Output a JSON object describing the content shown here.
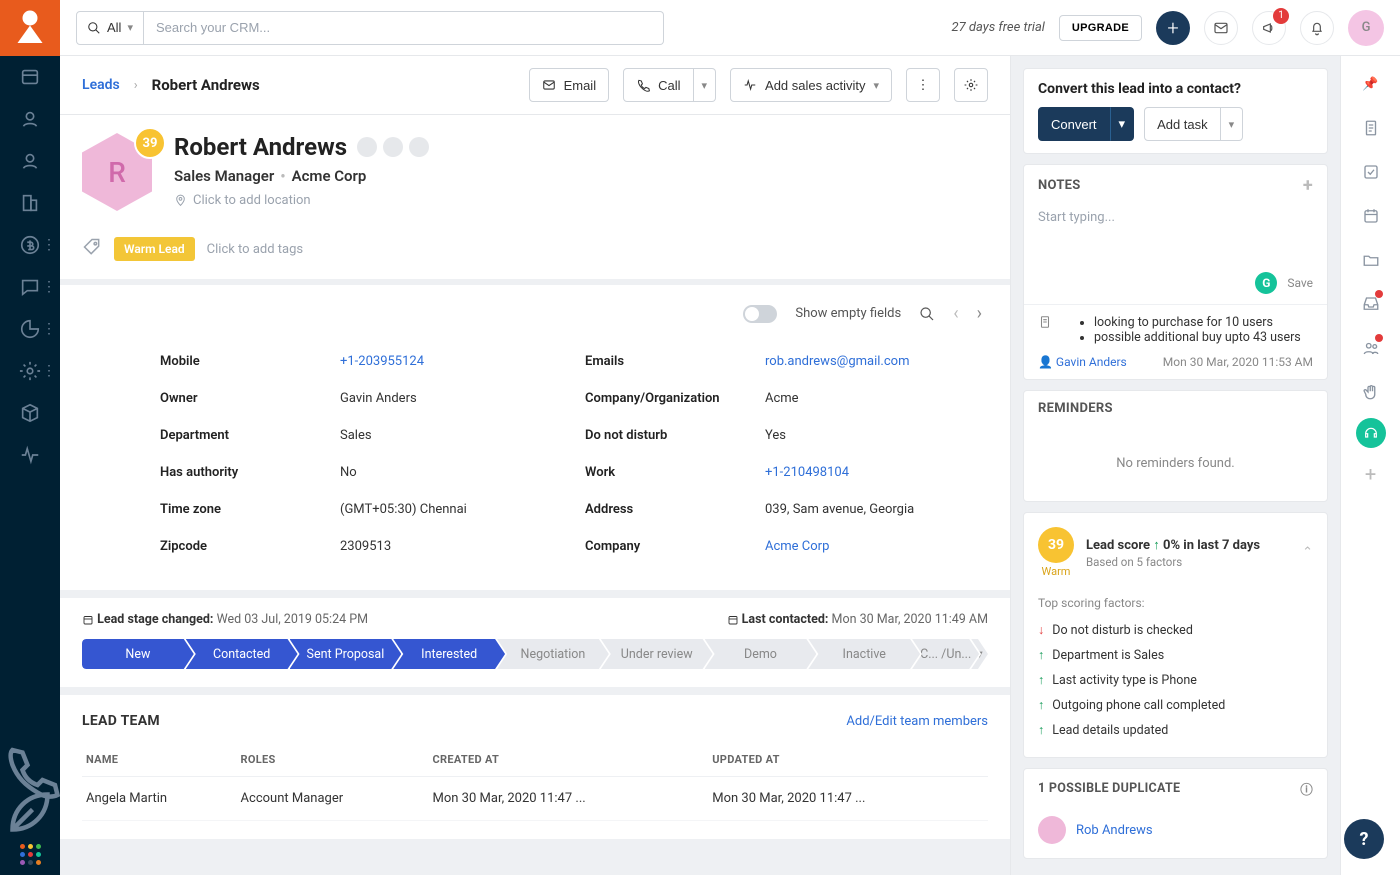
{
  "colors": {
    "brand": "#e85b1d",
    "navbg": "#002033",
    "primary": "#1b3a5b",
    "link": "#2f6fd8",
    "warm": "#f8c332",
    "stageActive": "#3556d1",
    "stageInactive": "#e8eaee",
    "success": "#1a9e5c",
    "danger": "#e33b3b"
  },
  "topbar": {
    "all": "All",
    "searchPlaceholder": "Search your CRM...",
    "trial": "27 days free trial",
    "upgrade": "UPGRADE",
    "badgeCount": "1",
    "avatarInitial": "G"
  },
  "breadcrumb": {
    "root": "Leads",
    "current": "Robert Andrews"
  },
  "headerButtons": {
    "email": "Email",
    "call": "Call",
    "addActivity": "Add sales activity"
  },
  "lead": {
    "initial": "R",
    "score": "39",
    "name": "Robert Andrews",
    "jobTitle": "Sales Manager",
    "company": "Acme Corp",
    "locationPlaceholder": "Click to add location",
    "tag": "Warm Lead",
    "addTags": "Click to add tags"
  },
  "details": {
    "showEmpty": "Show empty fields",
    "left": [
      {
        "label": "Mobile",
        "value": "+1-203955124",
        "link": true
      },
      {
        "label": "Owner",
        "value": "Gavin Anders",
        "link": false
      },
      {
        "label": "Department",
        "value": "Sales",
        "link": false
      },
      {
        "label": "Has authority",
        "value": "No",
        "link": false
      },
      {
        "label": "Time zone",
        "value": "(GMT+05:30) Chennai",
        "link": false
      },
      {
        "label": "Zipcode",
        "value": "2309513",
        "link": false
      }
    ],
    "right": [
      {
        "label": "Emails",
        "value": "rob.andrews@gmail.com",
        "link": true
      },
      {
        "label": "Company/Organization",
        "value": "Acme",
        "link": false
      },
      {
        "label": "Do not disturb",
        "value": "Yes",
        "link": false
      },
      {
        "label": "Work",
        "value": "+1-210498104",
        "link": true
      },
      {
        "label": "Address",
        "value": "039, Sam avenue, Georgia",
        "link": false
      },
      {
        "label": "Company",
        "value": "Acme Corp",
        "link": true
      }
    ]
  },
  "stage": {
    "changedLabel": "Lead stage changed:",
    "changedDate": "Wed 03 Jul, 2019 05:24 PM",
    "lastContactLabel": "Last contacted:",
    "lastContactDate": "Mon 30 Mar, 2020 11:49 AM",
    "stages": [
      {
        "name": "New",
        "active": true
      },
      {
        "name": "Contacted",
        "active": true
      },
      {
        "name": "Sent Proposal",
        "active": true
      },
      {
        "name": "Interested",
        "active": true
      },
      {
        "name": "Negotiation",
        "active": false
      },
      {
        "name": "Under review",
        "active": false
      },
      {
        "name": "Demo",
        "active": false
      },
      {
        "name": "Inactive",
        "active": false
      },
      {
        "name": "C... /Un...",
        "active": false
      }
    ]
  },
  "team": {
    "title": "LEAD TEAM",
    "addLink": "Add/Edit team members",
    "cols": [
      "NAME",
      "ROLES",
      "CREATED AT",
      "UPDATED AT"
    ],
    "rows": [
      [
        "Angela Martin",
        "Account Manager",
        "Mon 30 Mar, 2020 11:47 ...",
        "Mon 30 Mar, 2020 11:47 ..."
      ]
    ]
  },
  "convert": {
    "question": "Convert this lead into a contact?",
    "convert": "Convert",
    "addTask": "Add task"
  },
  "notes": {
    "title": "NOTES",
    "placeholder": "Start typing...",
    "save": "Save",
    "bullets": [
      "looking to purchase for 10 users",
      "possible additional buy upto 43 users"
    ],
    "author": "Gavin Anders",
    "date": "Mon 30 Mar, 2020 11:53 AM"
  },
  "reminders": {
    "title": "REMINDERS",
    "empty": "No reminders found."
  },
  "leadscore": {
    "score": "39",
    "warm": "Warm",
    "label": "Lead score",
    "change": "0% in last 7 days",
    "basis": "Based on 5 factors",
    "factorsTitle": "Top scoring factors:",
    "factors": [
      {
        "dir": "down",
        "text": "Do not disturb is checked"
      },
      {
        "dir": "up",
        "text": "Department is Sales"
      },
      {
        "dir": "up",
        "text": "Last activity type is Phone"
      },
      {
        "dir": "up",
        "text": "Outgoing phone call completed"
      },
      {
        "dir": "up",
        "text": "Lead details updated"
      }
    ]
  },
  "duplicate": {
    "title": "1 POSSIBLE DUPLICATE",
    "name": "Rob Andrews"
  }
}
